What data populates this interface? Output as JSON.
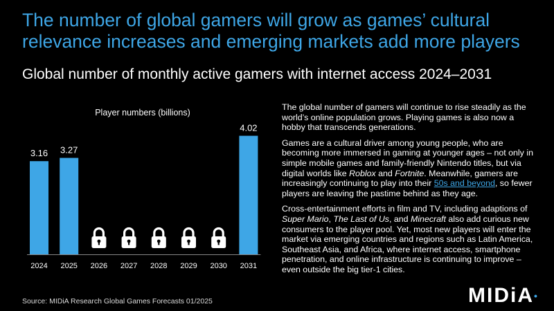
{
  "header": {
    "headline": "The number of global gamers will grow as games’ cultural relevance increases and emerging markets add more players",
    "subtitle": "Global number of monthly active gamers with internet access 2024–2031"
  },
  "chart_data": {
    "type": "bar",
    "title": "Player numbers (billions)",
    "categories": [
      "2024",
      "2025",
      "2026",
      "2027",
      "2028",
      "2029",
      "2030",
      "2031"
    ],
    "values": [
      3.16,
      3.27,
      null,
      null,
      null,
      null,
      null,
      4.02
    ],
    "value_labels": [
      "3.16",
      "3.27",
      "",
      "",
      "",
      "",
      "",
      "4.02"
    ],
    "locked": [
      false,
      false,
      true,
      true,
      true,
      true,
      true,
      false
    ],
    "ylim": [
      0,
      4.5
    ],
    "ylabel": "",
    "xlabel": "",
    "colors": {
      "bar": "#3ea6e6",
      "text": "#ffffff",
      "axis": "#888888"
    },
    "lock_icon": "padlock-icon"
  },
  "body": {
    "p1": "The global number of gamers will continue to rise steadily as the world’s online population grows. Playing games is also now a hobby that transcends generations.",
    "p2_a": "Games are a cultural driver among young people, who are becoming more immersed in gaming at younger ages – not only in simple mobile games and family-friendly Nintendo titles, but via digital worlds like ",
    "p2_roblox": "Roblox",
    "p2_b": " and ",
    "p2_fortnite": "Fortnite",
    "p2_c": ". Meanwhile, gamers are increasingly continuing to play into their ",
    "p2_link": "50s and beyond",
    "p2_d": ", so fewer players are leaving the pastime behind as they age.",
    "p3_a": "Cross-entertainment efforts in film and TV, including adaptions of ",
    "p3_mario": "Super Mario",
    "p3_b": ", ",
    "p3_lastofus": "The Last of Us",
    "p3_c": ", and ",
    "p3_minecraft": "Minecraft",
    "p3_d": " also add curious new consumers to the player pool. Yet, most new players will enter the market via emerging countries and regions such as Latin America, Southeast Asia, and Africa, where internet access, smartphone penetration, and online infrastructure is continuing to improve –  even outside the big tier-1 cities."
  },
  "footer": {
    "source": "Source: MIDiA Research Global Games Forecasts 01/2025",
    "logo": "MIDiA",
    "logo_mark": "•"
  },
  "colors": {
    "accent": "#3ea6e6",
    "background": "#000000"
  }
}
